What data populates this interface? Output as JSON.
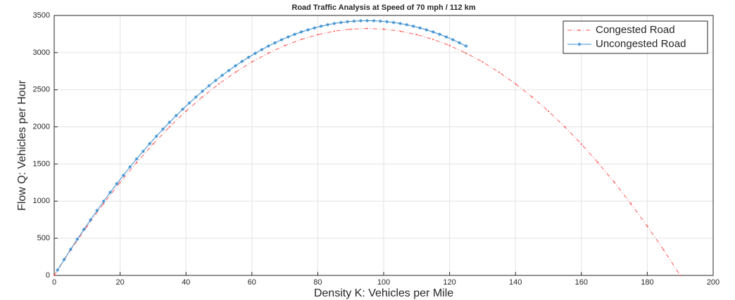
{
  "chart_data": {
    "type": "line",
    "title": "Road Traffic Analysis at Speed of 70 mph / 112 km",
    "x_label": "Density K: Vehicles per Mile",
    "y_label": "Flow Q: Vehicles per Hour",
    "xlim": [
      0,
      200
    ],
    "xticks": [
      0,
      20,
      40,
      60,
      80,
      100,
      120,
      140,
      160,
      180,
      200
    ],
    "ylim": [
      0,
      3500
    ],
    "yticks": [
      0,
      500,
      1000,
      1500,
      2000,
      2500,
      3000,
      3500
    ],
    "grid": true,
    "legend": "top-right",
    "series": [
      {
        "name": "Congested Road",
        "color": "#ff5a5a",
        "x": [
          0,
          5,
          10,
          15,
          20,
          25,
          30,
          35,
          40,
          45,
          50,
          55,
          60,
          65,
          70,
          75,
          80,
          85,
          90,
          95,
          100,
          105,
          110,
          115,
          120,
          125,
          130,
          135,
          140,
          145,
          150,
          155,
          160,
          165,
          170,
          175,
          180,
          185,
          190
        ],
        "values": [
          0,
          341,
          663,
          967,
          1253,
          1520,
          1768,
          1999,
          2211,
          2404,
          2579,
          2736,
          2874,
          2993,
          3095,
          3178,
          3242,
          3288,
          3316,
          3325,
          3316,
          3288,
          3242,
          3178,
          3095,
          2993,
          2874,
          2736,
          2579,
          2404,
          2211,
          1999,
          1768,
          1520,
          1253,
          967,
          663,
          341,
          0
        ]
      },
      {
        "name": "Uncongested Road",
        "color": "#3a8fd0",
        "x": [
          1,
          3,
          5,
          7,
          9,
          11,
          13,
          15,
          17,
          19,
          21,
          23,
          25,
          27,
          29,
          31,
          33,
          35,
          37,
          39,
          41,
          43,
          45,
          47,
          49,
          51,
          53,
          55,
          57,
          59,
          61,
          63,
          65,
          67,
          69,
          71,
          73,
          75,
          77,
          79,
          81,
          83,
          85,
          87,
          89,
          91,
          93,
          95,
          97,
          99,
          101,
          103,
          105,
          107,
          109,
          111,
          113,
          115,
          117,
          119,
          121,
          123,
          125
        ],
        "values": [
          72,
          213,
          352,
          487,
          619,
          748,
          874,
          998,
          1118,
          1235,
          1349,
          1460,
          1568,
          1672,
          1774,
          1873,
          1969,
          2062,
          2151,
          2238,
          2321,
          2402,
          2480,
          2554,
          2625,
          2694,
          2759,
          2822,
          2881,
          2937,
          2990,
          3040,
          3088,
          3132,
          3173,
          3211,
          3246,
          3278,
          3306,
          3332,
          3355,
          3375,
          3392,
          3405,
          3416,
          3423,
          3428,
          3430,
          3428,
          3423,
          3416,
          3405,
          3392,
          3375,
          3355,
          3332,
          3306,
          3278,
          3246,
          3211,
          3173,
          3132,
          3088
        ]
      }
    ]
  }
}
